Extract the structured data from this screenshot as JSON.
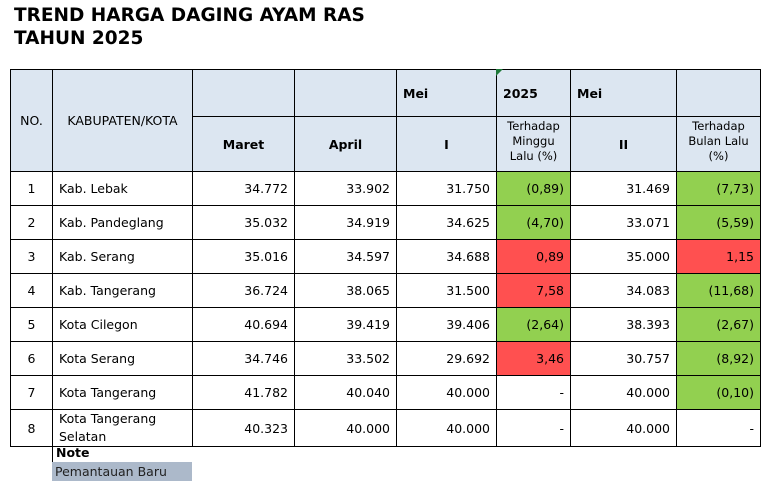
{
  "title": {
    "line1": "TREND HARGA DAGING AYAM RAS",
    "line2": "TAHUN 2025"
  },
  "header": {
    "no": "NO.",
    "kabkota": "KABUPATEN/KOTA",
    "mei_1": "Mei",
    "year": "2025",
    "mei_2": "Mei",
    "maret": "Maret",
    "april": "April",
    "week_1": "I",
    "change_week": "Terhadap Minggu Lalu (%)",
    "week_2": "II",
    "change_month": "Terhadap Bulan Lalu (%)"
  },
  "colors": {
    "header_bg": "#dce6f1",
    "green": "#92d050",
    "red": "#ff5050",
    "legend_bg": "#acb9ca"
  },
  "rows": [
    {
      "no": "1",
      "name": "Kab. Lebak",
      "maret": "34.772",
      "april": "33.902",
      "w1": "31.750",
      "chg_w": "(0,89)",
      "chg_w_color": "green",
      "w2": "31.469",
      "chg_m": "(7,73)",
      "chg_m_color": "green"
    },
    {
      "no": "2",
      "name": "Kab. Pandeglang",
      "maret": "35.032",
      "april": "34.919",
      "w1": "34.625",
      "chg_w": "(4,70)",
      "chg_w_color": "green",
      "w2": "33.071",
      "chg_m": "(5,59)",
      "chg_m_color": "green"
    },
    {
      "no": "3",
      "name": "Kab. Serang",
      "maret": "35.016",
      "april": "34.597",
      "w1": "34.688",
      "chg_w": "0,89",
      "chg_w_color": "red",
      "w2": "35.000",
      "chg_m": "1,15",
      "chg_m_color": "red"
    },
    {
      "no": "4",
      "name": "Kab. Tangerang",
      "maret": "36.724",
      "april": "38.065",
      "w1": "31.500",
      "chg_w": "7,58",
      "chg_w_color": "red",
      "w2": "34.083",
      "chg_m": "(11,68)",
      "chg_m_color": "green"
    },
    {
      "no": "5",
      "name": "Kota Cilegon",
      "maret": "40.694",
      "april": "39.419",
      "w1": "39.406",
      "chg_w": "(2,64)",
      "chg_w_color": "green",
      "w2": "38.393",
      "chg_m": "(2,67)",
      "chg_m_color": "green"
    },
    {
      "no": "6",
      "name": "Kota Serang",
      "maret": "34.746",
      "april": "33.502",
      "w1": "29.692",
      "chg_w": "3,46",
      "chg_w_color": "red",
      "w2": "30.757",
      "chg_m": "(8,92)",
      "chg_m_color": "green"
    },
    {
      "no": "7",
      "name": "Kota Tangerang",
      "maret": "41.782",
      "april": "40.040",
      "w1": "40.000",
      "chg_w": "-",
      "chg_w_color": "none",
      "w2": "40.000",
      "chg_m": "(0,10)",
      "chg_m_color": "green"
    },
    {
      "no": "8",
      "name": "Kota Tangerang Selatan",
      "maret": "40.323",
      "april": "40.000",
      "w1": "40.000",
      "chg_w": "-",
      "chg_w_color": "none",
      "w2": "40.000",
      "chg_m": "-",
      "chg_m_color": "none"
    }
  ],
  "note": {
    "label": "Note",
    "legend": "Pemantauan Baru"
  }
}
